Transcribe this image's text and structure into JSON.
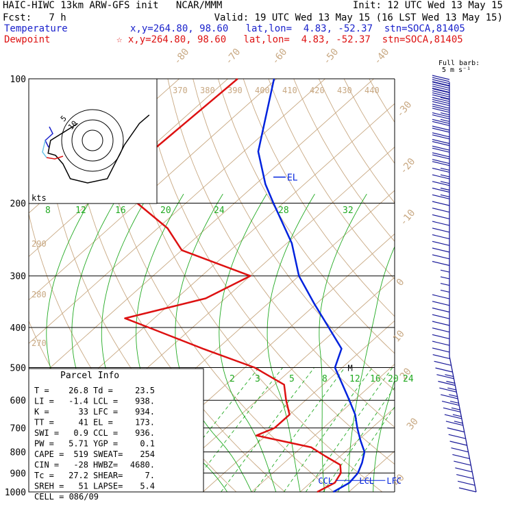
{
  "header": {
    "line1_left": "HAIC-HIWC 13km ARW-GFS init   NCAR/MMM",
    "line1_right": "Init: 12 UTC Wed 13 May 15",
    "line2_left": "Fcst:   7 h",
    "line2_right": "Valid: 19 UTC Wed 13 May 15 (16 LST Wed 13 May 15)",
    "temp_label": "Temperature",
    "temp_loc": "x,y=264.80, 98.60   lat,lon=  4.83, -52.37  stn=SOCA,81405",
    "dew_label": "Dewpoint",
    "dew_loc": "☆ x,y=264.80, 98.60   lat,lon=  4.83, -52.37  stn=SOCA,81405",
    "barb_legend_1": "Full barb:",
    "barb_legend_2": "5 m s⁻¹"
  },
  "colors": {
    "temperature": "#0022dd",
    "dewpoint": "#dd1111",
    "mixing_ratio": "#22aa22",
    "dry_adiabat": "#c8a882",
    "moist_adiabat": "#22aa22",
    "isobar": "#000000",
    "barb": "#1a1a99"
  },
  "chart_data": {
    "type": "skew-t",
    "pressure_levels": [
      100,
      200,
      300,
      400,
      500,
      600,
      700,
      800,
      900,
      1000
    ],
    "pressure_labels": [
      "100",
      "200",
      "300",
      "400",
      "500",
      "600",
      "700",
      "800",
      "900",
      "1000"
    ],
    "temperature_ticks": [
      "-80",
      "-70",
      "-60",
      "-50",
      "-40",
      "-30",
      "-20",
      "-10",
      "0",
      "10",
      "20",
      "30",
      "40"
    ],
    "theta_ticks": [
      "370",
      "380",
      "390",
      "400",
      "410",
      "420",
      "430",
      "440"
    ],
    "theta_side_ticks": [
      "290",
      "280",
      "270"
    ],
    "mixing_ratio_ticks_top": [
      "8",
      "12",
      "16",
      "20",
      "24",
      "28",
      "32"
    ],
    "mixing_ratio_ticks_low": [
      "2",
      "3",
      "5",
      "8",
      "12",
      "16",
      "20",
      "24"
    ],
    "hodograph_unit": "kts",
    "hodograph_ring_labels": [
      "5",
      "10"
    ],
    "series": [
      {
        "name": "Temperature",
        "points": [
          [
            100,
            -80.5
          ],
          [
            150,
            -67
          ],
          [
            180,
            -58
          ],
          [
            200,
            -52
          ],
          [
            250,
            -39
          ],
          [
            300,
            -30
          ],
          [
            350,
            -20.5
          ],
          [
            400,
            -12
          ],
          [
            450,
            -4.5
          ],
          [
            500,
            -1.5
          ],
          [
            550,
            4
          ],
          [
            600,
            9
          ],
          [
            650,
            13.5
          ],
          [
            700,
            17
          ],
          [
            750,
            20.5
          ],
          [
            800,
            24
          ],
          [
            850,
            26
          ],
          [
            900,
            27.5
          ],
          [
            950,
            28
          ],
          [
            1000,
            26.8
          ]
        ]
      },
      {
        "name": "Dewpoint",
        "points": [
          [
            100,
            -88
          ],
          [
            150,
            -89
          ],
          [
            180,
            -86
          ],
          [
            200,
            -80
          ],
          [
            230,
            -68
          ],
          [
            260,
            -60
          ],
          [
            300,
            -40
          ],
          [
            340,
            -44
          ],
          [
            380,
            -56
          ],
          [
            400,
            -49
          ],
          [
            450,
            -33
          ],
          [
            500,
            -18
          ],
          [
            550,
            -8
          ],
          [
            600,
            -4
          ],
          [
            650,
            0
          ],
          [
            700,
            0
          ],
          [
            730,
            -2
          ],
          [
            780,
            12
          ],
          [
            820,
            17
          ],
          [
            860,
            22
          ],
          [
            900,
            24
          ],
          [
            950,
            25
          ],
          [
            1000,
            23.5
          ]
        ]
      }
    ],
    "labels": [
      {
        "text": "EL",
        "p": 173,
        "t": -58
      },
      {
        "text": "M",
        "p": 500,
        "t": 0
      },
      {
        "text": "CCL",
        "p": 936,
        "t": 27.8
      },
      {
        "text": "LCL",
        "p": 938,
        "t": 27.8
      },
      {
        "text": "LFC",
        "p": 934,
        "t": 27.8
      }
    ],
    "hodograph": [
      [
        -0.3,
        -0.4
      ],
      [
        -0.85,
        0.0
      ],
      [
        -0.9,
        0.3
      ],
      [
        -0.75,
        0.35
      ],
      [
        -0.6,
        0.55
      ],
      [
        -0.45,
        0.9
      ],
      [
        -0.1,
        1.0
      ],
      [
        0.3,
        0.9
      ],
      [
        0.65,
        0.1
      ],
      [
        0.95,
        -0.4
      ],
      [
        1.15,
        -0.6
      ]
    ],
    "wind_barbs_ms": [
      20,
      22,
      20,
      18,
      16,
      14,
      13,
      12,
      12,
      11,
      11,
      10,
      10,
      9,
      9,
      9,
      8,
      8,
      7,
      7,
      7,
      6,
      6,
      6,
      5,
      5,
      5,
      5,
      4,
      4,
      4,
      4,
      5,
      5,
      5,
      5,
      6,
      6,
      6,
      6,
      7,
      7,
      7,
      7,
      8,
      8,
      8,
      8,
      8,
      8,
      8,
      8,
      7,
      7,
      7,
      7,
      6,
      6,
      6,
      6,
      5,
      5
    ]
  },
  "parcel": {
    "title": "Parcel Info",
    "rows": [
      [
        "T   =",
        "26.8",
        "Td  =",
        "23.5"
      ],
      [
        "LI  =",
        "-1.4",
        "LCL =",
        "938."
      ],
      [
        "K   =",
        "33",
        "LFC =",
        "934."
      ],
      [
        "TT  =",
        "41",
        "EL  =",
        "173."
      ],
      [
        "SWI =",
        "0.9",
        "CCL =",
        "936."
      ],
      [
        "PW  =",
        "5.71",
        "YGP =",
        "0.1"
      ],
      [
        "CAPE =",
        "519",
        "SWEAT=",
        "254"
      ],
      [
        "CIN =",
        "-28",
        "HWBZ=",
        "4680."
      ],
      [
        "Tc  =",
        "27.2",
        "SHEAR=",
        "7."
      ],
      [
        "SREH =",
        "51",
        "LAPSE=",
        "5.4"
      ]
    ],
    "cell_label": "CELL = 086/09"
  }
}
